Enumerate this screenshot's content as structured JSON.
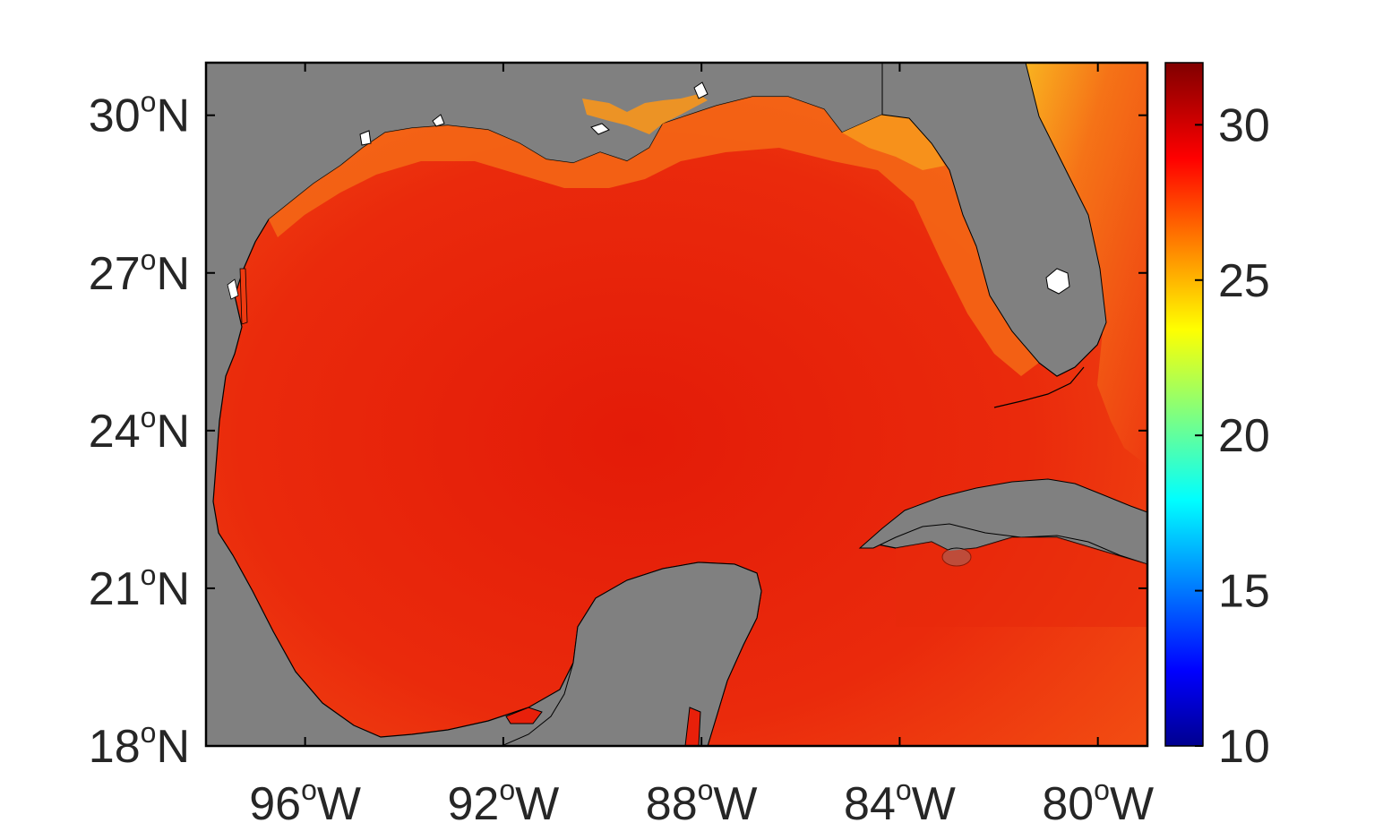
{
  "map": {
    "type": "heatmap",
    "region": "Gulf of Mexico",
    "lat_range": [
      18,
      31
    ],
    "lon_range": [
      -98,
      -79
    ],
    "lat_ticks": [
      {
        "value": 18,
        "label": "18",
        "deg": "o",
        "hemi": "N"
      },
      {
        "value": 21,
        "label": "21",
        "deg": "o",
        "hemi": "N"
      },
      {
        "value": 24,
        "label": "24",
        "deg": "o",
        "hemi": "N"
      },
      {
        "value": 27,
        "label": "27",
        "deg": "o",
        "hemi": "N"
      },
      {
        "value": 30,
        "label": "30",
        "deg": "o",
        "hemi": "N"
      }
    ],
    "lon_ticks": [
      {
        "value": -96,
        "label": "96",
        "deg": "o",
        "hemi": "W"
      },
      {
        "value": -92,
        "label": "92",
        "deg": "o",
        "hemi": "W"
      },
      {
        "value": -88,
        "label": "88",
        "deg": "o",
        "hemi": "W"
      },
      {
        "value": -84,
        "label": "84",
        "deg": "o",
        "hemi": "W"
      },
      {
        "value": -80,
        "label": "80",
        "deg": "o",
        "hemi": "W"
      }
    ],
    "land_color": "#808080",
    "ocean_colors": {
      "core": "#e8200a",
      "warm": "#f03a10",
      "shelf": "#f56a14",
      "cool": "#f7a31c"
    }
  },
  "colorbar": {
    "range": [
      10,
      32
    ],
    "colormap": "jet",
    "ticks": [
      {
        "value": 10,
        "label": "10"
      },
      {
        "value": 15,
        "label": "15"
      },
      {
        "value": 20,
        "label": "20"
      },
      {
        "value": 25,
        "label": "25"
      },
      {
        "value": 30,
        "label": "30"
      }
    ]
  }
}
